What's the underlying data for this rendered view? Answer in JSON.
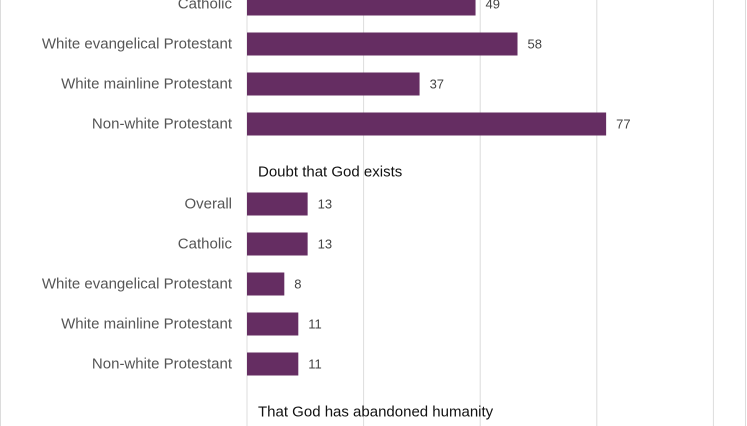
{
  "chart_data": {
    "type": "bar",
    "orientation": "horizontal",
    "bar_color": "#652d62",
    "xlim": [
      0,
      100
    ],
    "grid": true,
    "sections": [
      {
        "title": "",
        "categories": [
          "Catholic",
          "White evangelical Protestant",
          "White mainline Protestant",
          "Non-white Protestant"
        ],
        "values": [
          49,
          58,
          37,
          77
        ]
      },
      {
        "title": "Doubt that God exists",
        "categories": [
          "Overall",
          "Catholic",
          "White evangelical Protestant",
          "White mainline Protestant",
          "Non-white Protestant"
        ],
        "values": [
          13,
          13,
          8,
          11,
          11
        ]
      },
      {
        "title": "That God has abandoned humanity",
        "categories": [],
        "values": []
      }
    ]
  }
}
